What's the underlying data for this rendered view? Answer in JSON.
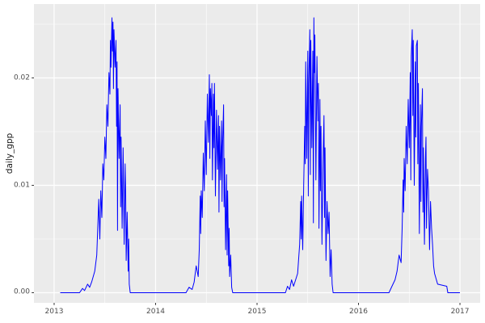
{
  "chart_data": {
    "type": "line",
    "title": "",
    "xlabel": "",
    "ylabel": "daily_gpp",
    "legend_position": "none",
    "grid": true,
    "x_tick_labels": [
      "2013",
      "2014",
      "2015",
      "2016",
      "2017"
    ],
    "x_ticks": [
      2013,
      2014,
      2015,
      2016,
      2017
    ],
    "x_minor_ticks": [
      2013.5,
      2014.5,
      2015.5,
      2016.5
    ],
    "y_tick_labels": [
      "0.00",
      "0.01",
      "0.02"
    ],
    "y_ticks": [
      0,
      0.01,
      0.02
    ],
    "y_minor_ticks": [
      0.005,
      0.015,
      0.025
    ],
    "xlim": [
      2012.801,
      2017.199
    ],
    "ylim": [
      -0.00094,
      0.02688
    ],
    "colors": {
      "line": "#0000FF",
      "panel_background": "#EBEBEB",
      "gridline_major": "#FFFFFF",
      "gridline_minor": "#FFFFFF",
      "tick_label": "#4D4D4D",
      "axis_title": "#1A1A1A",
      "tick_mark": "#333333",
      "plot_background": "#FFFFFF"
    },
    "series": [
      {
        "name": "daily_gpp",
        "points": [
          [
            2013.06,
            0
          ],
          [
            2013.25,
            0
          ],
          [
            2013.28,
            0.0004
          ],
          [
            2013.3,
            0.0002
          ],
          [
            2013.33,
            0.0008
          ],
          [
            2013.35,
            0.0005
          ],
          [
            2013.37,
            0.001
          ],
          [
            2013.4,
            0.002
          ],
          [
            2013.42,
            0.0035
          ],
          [
            2013.44,
            0.0087
          ],
          [
            2013.45,
            0.005
          ],
          [
            2013.46,
            0.0095
          ],
          [
            2013.47,
            0.007
          ],
          [
            2013.48,
            0.012
          ],
          [
            2013.49,
            0.0105
          ],
          [
            2013.5,
            0.0145
          ],
          [
            2013.51,
            0.0125
          ],
          [
            2013.52,
            0.0175
          ],
          [
            2013.53,
            0.0155
          ],
          [
            2013.54,
            0.0205
          ],
          [
            2013.55,
            0.0185
          ],
          [
            2013.555,
            0.0235
          ],
          [
            2013.56,
            0.021
          ],
          [
            2013.57,
            0.0256
          ],
          [
            2013.575,
            0.0225
          ],
          [
            2013.58,
            0.0252
          ],
          [
            2013.585,
            0.019
          ],
          [
            2013.59,
            0.0245
          ],
          [
            2013.6,
            0.021
          ],
          [
            2013.61,
            0.0235
          ],
          [
            2013.615,
            0.0155
          ],
          [
            2013.62,
            0.0215
          ],
          [
            2013.625,
            0.0058
          ],
          [
            2013.63,
            0.019
          ],
          [
            2013.64,
            0.0125
          ],
          [
            2013.65,
            0.0175
          ],
          [
            2013.655,
            0.008
          ],
          [
            2013.66,
            0.0145
          ],
          [
            2013.67,
            0.006
          ],
          [
            2013.68,
            0.0135
          ],
          [
            2013.69,
            0.0045
          ],
          [
            2013.7,
            0.012
          ],
          [
            2013.705,
            0.009
          ],
          [
            2013.71,
            0.003
          ],
          [
            2013.72,
            0.0075
          ],
          [
            2013.73,
            0.002
          ],
          [
            2013.735,
            0.005
          ],
          [
            2013.74,
            0.0008
          ],
          [
            2013.75,
            0
          ],
          [
            2014.3,
            0
          ],
          [
            2014.33,
            0.0005
          ],
          [
            2014.36,
            0.0003
          ],
          [
            2014.38,
            0.001
          ],
          [
            2014.4,
            0.0025
          ],
          [
            2014.42,
            0.0015
          ],
          [
            2014.43,
            0.004
          ],
          [
            2014.44,
            0.009
          ],
          [
            2014.445,
            0.0055
          ],
          [
            2014.45,
            0.0095
          ],
          [
            2014.46,
            0.007
          ],
          [
            2014.47,
            0.013
          ],
          [
            2014.48,
            0.0095
          ],
          [
            2014.49,
            0.016
          ],
          [
            2014.5,
            0.011
          ],
          [
            2014.51,
            0.0185
          ],
          [
            2014.52,
            0.014
          ],
          [
            2014.53,
            0.0203
          ],
          [
            2014.535,
            0.0125
          ],
          [
            2014.54,
            0.019
          ],
          [
            2014.55,
            0.0165
          ],
          [
            2014.555,
            0.0195
          ],
          [
            2014.56,
            0.0105
          ],
          [
            2014.57,
            0.0185
          ],
          [
            2014.575,
            0.0135
          ],
          [
            2014.58,
            0.0195
          ],
          [
            2014.59,
            0.009
          ],
          [
            2014.6,
            0.017
          ],
          [
            2014.61,
            0.0115
          ],
          [
            2014.62,
            0.0165
          ],
          [
            2014.625,
            0.0075
          ],
          [
            2014.63,
            0.0155
          ],
          [
            2014.64,
            0.0105
          ],
          [
            2014.65,
            0.016
          ],
          [
            2014.655,
            0.0085
          ],
          [
            2014.66,
            0.0135
          ],
          [
            2014.67,
            0.0175
          ],
          [
            2014.675,
            0.008
          ],
          [
            2014.68,
            0.0125
          ],
          [
            2014.69,
            0.004
          ],
          [
            2014.7,
            0.011
          ],
          [
            2014.705,
            0.0035
          ],
          [
            2014.71,
            0.0095
          ],
          [
            2014.72,
            0.0025
          ],
          [
            2014.725,
            0.006
          ],
          [
            2014.73,
            0.0015
          ],
          [
            2014.74,
            0.0035
          ],
          [
            2014.75,
            0.0005
          ],
          [
            2014.76,
            0
          ],
          [
            2015.28,
            0
          ],
          [
            2015.3,
            0.0006
          ],
          [
            2015.32,
            0.0003
          ],
          [
            2015.34,
            0.0012
          ],
          [
            2015.36,
            0.0006
          ],
          [
            2015.4,
            0.0018
          ],
          [
            2015.42,
            0.0045
          ],
          [
            2015.43,
            0.0085
          ],
          [
            2015.435,
            0.005
          ],
          [
            2015.44,
            0.009
          ],
          [
            2015.45,
            0.004
          ],
          [
            2015.46,
            0.01
          ],
          [
            2015.47,
            0.0155
          ],
          [
            2015.475,
            0.012
          ],
          [
            2015.48,
            0.0215
          ],
          [
            2015.49,
            0.0125
          ],
          [
            2015.5,
            0.0225
          ],
          [
            2015.505,
            0.009
          ],
          [
            2015.51,
            0.0195
          ],
          [
            2015.52,
            0.0245
          ],
          [
            2015.525,
            0.011
          ],
          [
            2015.53,
            0.0235
          ],
          [
            2015.54,
            0.0135
          ],
          [
            2015.55,
            0.0225
          ],
          [
            2015.555,
            0.0065
          ],
          [
            2015.56,
            0.0256
          ],
          [
            2015.565,
            0.0205
          ],
          [
            2015.57,
            0.024
          ],
          [
            2015.58,
            0.0105
          ],
          [
            2015.59,
            0.022
          ],
          [
            2015.6,
            0.016
          ],
          [
            2015.605,
            0.0195
          ],
          [
            2015.61,
            0.006
          ],
          [
            2015.62,
            0.018
          ],
          [
            2015.625,
            0.0095
          ],
          [
            2015.63,
            0.0155
          ],
          [
            2015.64,
            0.0045
          ],
          [
            2015.65,
            0.012
          ],
          [
            2015.66,
            0.0165
          ],
          [
            2015.665,
            0.007
          ],
          [
            2015.67,
            0.0135
          ],
          [
            2015.68,
            0.003
          ],
          [
            2015.69,
            0.0085
          ],
          [
            2015.7,
            0.0055
          ],
          [
            2015.71,
            0.0075
          ],
          [
            2015.72,
            0.0015
          ],
          [
            2015.73,
            0.004
          ],
          [
            2015.74,
            0.0008
          ],
          [
            2015.75,
            0
          ],
          [
            2016.3,
            0
          ],
          [
            2016.33,
            0.0006
          ],
          [
            2016.36,
            0.0012
          ],
          [
            2016.38,
            0.002
          ],
          [
            2016.4,
            0.0035
          ],
          [
            2016.42,
            0.0028
          ],
          [
            2016.43,
            0.006
          ],
          [
            2016.44,
            0.0105
          ],
          [
            2016.445,
            0.0075
          ],
          [
            2016.45,
            0.0125
          ],
          [
            2016.46,
            0.0095
          ],
          [
            2016.47,
            0.0155
          ],
          [
            2016.48,
            0.012
          ],
          [
            2016.49,
            0.018
          ],
          [
            2016.5,
            0.0135
          ],
          [
            2016.51,
            0.0205
          ],
          [
            2016.515,
            0.0105
          ],
          [
            2016.52,
            0.022
          ],
          [
            2016.53,
            0.0245
          ],
          [
            2016.535,
            0.0165
          ],
          [
            2016.54,
            0.0235
          ],
          [
            2016.55,
            0.01
          ],
          [
            2016.56,
            0.0215
          ],
          [
            2016.565,
            0.0145
          ],
          [
            2016.57,
            0.023
          ],
          [
            2016.58,
            0.0235
          ],
          [
            2016.585,
            0.012
          ],
          [
            2016.59,
            0.0195
          ],
          [
            2016.6,
            0.0055
          ],
          [
            2016.61,
            0.0175
          ],
          [
            2016.615,
            0.0085
          ],
          [
            2016.62,
            0.0155
          ],
          [
            2016.63,
            0.019
          ],
          [
            2016.635,
            0.0075
          ],
          [
            2016.64,
            0.0135
          ],
          [
            2016.65,
            0.0045
          ],
          [
            2016.66,
            0.0125
          ],
          [
            2016.665,
            0.0145
          ],
          [
            2016.67,
            0.006
          ],
          [
            2016.68,
            0.0115
          ],
          [
            2016.69,
            0.0095
          ],
          [
            2016.7,
            0.004
          ],
          [
            2016.71,
            0.0085
          ],
          [
            2016.72,
            0.006
          ],
          [
            2016.73,
            0.0045
          ],
          [
            2016.74,
            0.0025
          ],
          [
            2016.75,
            0.0018
          ],
          [
            2016.78,
            0.0008
          ],
          [
            2016.87,
            0.0006
          ],
          [
            2016.88,
            0
          ],
          [
            2017.0,
            0
          ]
        ]
      }
    ]
  }
}
